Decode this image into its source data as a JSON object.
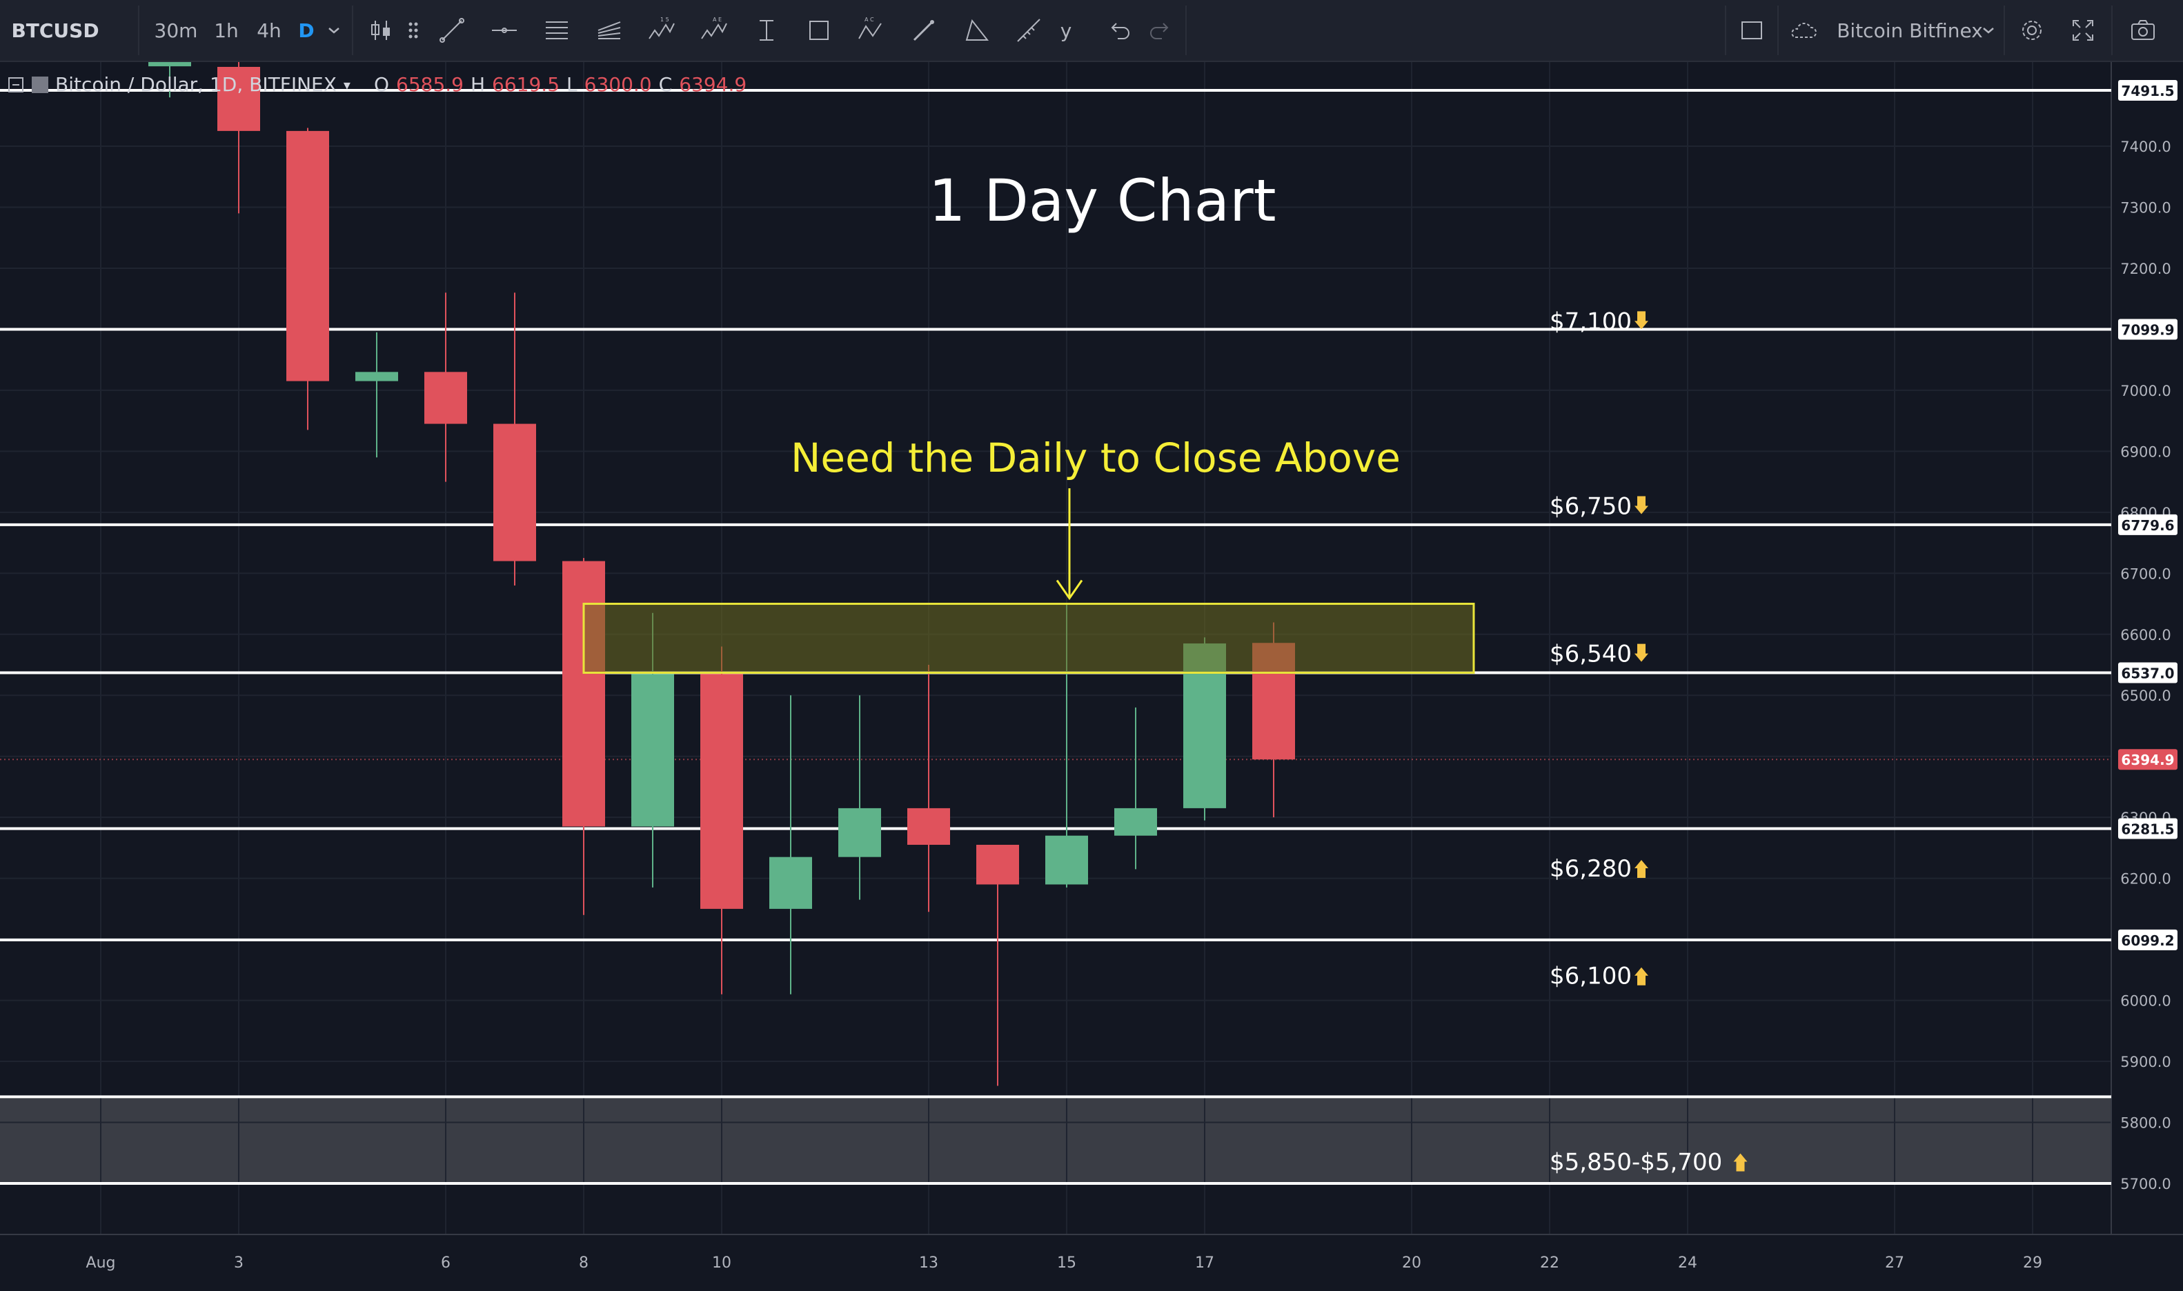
{
  "toolbar": {
    "symbol": "BTCUSD",
    "intervals": [
      "30m",
      "1h",
      "4h",
      "D"
    ],
    "active_interval": "D",
    "truncated_label": "y",
    "exchange_label": "Bitcoin Bitfinex",
    "icons": [
      "candles-icon",
      "drag-handle-icon",
      "trend-line-icon",
      "horizontal-ray-icon",
      "fib-retracement-icon",
      "pitchfork-icon",
      "elliott-wave-icon",
      "abcde-pattern-icon",
      "date-price-range-icon",
      "rectangle-icon",
      "abcd-pattern-icon",
      "brush-icon",
      "triangle-icon",
      "measure-icon",
      "undo-icon",
      "redo-icon",
      "layout-icon",
      "cloud-icon",
      "settings-icon",
      "fullscreen-icon",
      "camera-icon"
    ]
  },
  "legend": {
    "title": "Bitcoin / Dollar, 1D, BITFINEX",
    "o_label": "O",
    "o_value": "6585.9",
    "h_label": "H",
    "h_value": "6619.5",
    "l_label": "L",
    "l_value": "6300.0",
    "c_label": "C",
    "c_value": "6394.9"
  },
  "colors": {
    "up": "#5fb38a",
    "down": "#e0525c",
    "zone_fill": "#6b6a1f",
    "zone_stroke": "#e8e53a",
    "annotation": "#f5ee37",
    "level_line": "#ffffff",
    "bottom_zone": "#3a3d45"
  },
  "annotations": {
    "chart_title": "1 Day Chart",
    "callout": "Need the Daily to Close Above"
  },
  "chart_data": {
    "type": "candlestick",
    "ylim": [
      5630,
      7540
    ],
    "x_ticks": [
      "Aug",
      "3",
      "6",
      "8",
      "10",
      "13",
      "15",
      "17",
      "20",
      "22",
      "24",
      "27",
      "29"
    ],
    "y_ticks": [
      "7400.0",
      "7300.0",
      "7200.0",
      "7100.0",
      "7000.0",
      "6900.0",
      "6800.0",
      "6700.0",
      "6600.0",
      "6500.0",
      "6400.0",
      "6300.0",
      "6200.0",
      "6100.0",
      "6000.0",
      "5900.0",
      "5800.0",
      "5700.0"
    ],
    "candles": [
      {
        "date": "Aug 2",
        "open": 7540,
        "high": 7540,
        "low": 7480,
        "close": 7540
      },
      {
        "date": "Aug 3",
        "open": 7530,
        "high": 7540,
        "low": 7290,
        "close": 7425
      },
      {
        "date": "Aug 4",
        "open": 7425,
        "high": 7430,
        "low": 6935,
        "close": 7015
      },
      {
        "date": "Aug 5",
        "open": 7015,
        "high": 7095,
        "low": 6890,
        "close": 7030
      },
      {
        "date": "Aug 6",
        "open": 7030,
        "high": 7160,
        "low": 6850,
        "close": 6945
      },
      {
        "date": "Aug 7",
        "open": 6945,
        "high": 7160,
        "low": 6680,
        "close": 6720
      },
      {
        "date": "Aug 8",
        "open": 6720,
        "high": 6725,
        "low": 6140,
        "close": 6285
      },
      {
        "date": "Aug 9",
        "open": 6285,
        "high": 6635,
        "low": 6185,
        "close": 6535
      },
      {
        "date": "Aug 10",
        "open": 6535,
        "high": 6580,
        "low": 6010,
        "close": 6150
      },
      {
        "date": "Aug 11",
        "open": 6150,
        "high": 6500,
        "low": 6010,
        "close": 6235
      },
      {
        "date": "Aug 12",
        "open": 6235,
        "high": 6500,
        "low": 6165,
        "close": 6315
      },
      {
        "date": "Aug 13",
        "open": 6315,
        "high": 6550,
        "low": 6145,
        "close": 6255
      },
      {
        "date": "Aug 14",
        "open": 6255,
        "high": 6255,
        "low": 5860,
        "close": 6190
      },
      {
        "date": "Aug 15",
        "open": 6190,
        "high": 6650,
        "low": 6185,
        "close": 6270
      },
      {
        "date": "Aug 16",
        "open": 6270,
        "high": 6480,
        "low": 6215,
        "close": 6315
      },
      {
        "date": "Aug 17",
        "open": 6315,
        "high": 6595,
        "low": 6295,
        "close": 6585
      },
      {
        "date": "Aug 18",
        "open": 6585.9,
        "high": 6619.5,
        "low": 6300.0,
        "close": 6394.9
      }
    ],
    "levels": [
      {
        "value": 7491.5,
        "tag": "7491.5"
      },
      {
        "value": 7099.9,
        "tag": "7099.9"
      },
      {
        "value": 6779.6,
        "tag": "6779.6"
      },
      {
        "value": 6537.0,
        "tag": "6537.0"
      },
      {
        "value": 6281.5,
        "tag": "6281.5"
      },
      {
        "value": 6099.2,
        "tag": "6099.2"
      },
      {
        "value": 5842,
        "tag": ""
      },
      {
        "value": 5700,
        "tag": ""
      }
    ],
    "last_price": {
      "value": 6394.9,
      "tag": "6394.9"
    },
    "resistance_zone": {
      "from": 6537,
      "to": 6650,
      "start": "Aug 8",
      "end": "Aug 21"
    },
    "support_zone": {
      "from": 5700,
      "to": 5842
    },
    "level_labels": [
      {
        "text": "$7,100",
        "hand": "down",
        "price": 7100
      },
      {
        "text": "$6,750",
        "hand": "down",
        "price": 6797
      },
      {
        "text": "$6,540",
        "hand": "down",
        "price": 6555
      },
      {
        "text": "$6,280",
        "hand": "up",
        "price": 6203
      },
      {
        "text": "$6,100",
        "hand": "up",
        "price": 6027
      },
      {
        "text": "$5,850-$5,700",
        "hand": "up",
        "price": 5722
      }
    ]
  }
}
